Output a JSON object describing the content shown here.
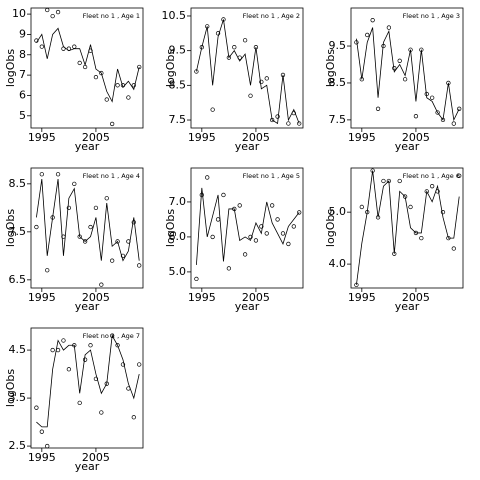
{
  "chart_data": [
    {
      "type": "line",
      "title": "Fleet no 1 , Age 1",
      "xlabel": "year",
      "ylabel": "logObs",
      "x": [
        1994,
        1995,
        1996,
        1997,
        1998,
        1999,
        2000,
        2001,
        2002,
        2003,
        2004,
        2005,
        2006,
        2007,
        2008,
        2009,
        2010,
        2011,
        2012,
        2013
      ],
      "xlim": [
        1993,
        2013.7
      ],
      "xticks": [
        1995,
        2005
      ],
      "ylim": [
        4.4,
        10.3
      ],
      "yticks": [
        5,
        6,
        7,
        8,
        9,
        10
      ],
      "series": [
        {
          "color": "#000000",
          "marker": "circle",
          "values": [
            8.7,
            8.4,
            10.2,
            9.9,
            10.1,
            8.3,
            8.3,
            8.4,
            7.6,
            7.4,
            8.2,
            6.9,
            7.1,
            5.8,
            4.6,
            6.5,
            6.5,
            5.9,
            6.5,
            7.4
          ]
        },
        {
          "color": "#000000",
          "marker": "none",
          "values": [
            8.6,
            9.0,
            7.8,
            9.0,
            9.3,
            8.4,
            8.2,
            8.3,
            8.3,
            7.5,
            8.5,
            7.3,
            7.1,
            6.2,
            5.7,
            7.3,
            6.4,
            6.7,
            6.3,
            7.4
          ]
        }
      ]
    },
    {
      "type": "line",
      "title": "Fleet no 1 , Age 2",
      "xlabel": "year",
      "ylabel": "logObs",
      "x": [
        1994,
        1995,
        1996,
        1997,
        1998,
        1999,
        2000,
        2001,
        2002,
        2003,
        2004,
        2005,
        2006,
        2007,
        2008,
        2009,
        2010,
        2011,
        2012,
        2013
      ],
      "xlim": [
        1993,
        2013.7
      ],
      "xticks": [
        1995,
        2005
      ],
      "ylim": [
        7.27,
        10.73
      ],
      "yticks": [
        7.5,
        8.5,
        9.5,
        10.5
      ],
      "series": [
        {
          "color": "#000000",
          "marker": "circle",
          "values": [
            8.9,
            9.6,
            10.2,
            7.8,
            10.0,
            10.4,
            9.3,
            9.6,
            9.3,
            9.8,
            8.2,
            9.6,
            8.6,
            8.7,
            7.5,
            7.6,
            8.8,
            7.4,
            7.7,
            7.4
          ]
        },
        {
          "color": "#000000",
          "marker": "none",
          "values": [
            8.9,
            9.6,
            10.2,
            8.5,
            9.9,
            10.4,
            9.3,
            9.5,
            9.2,
            9.4,
            8.5,
            9.6,
            8.4,
            8.5,
            7.5,
            7.4,
            8.8,
            7.5,
            7.8,
            7.4
          ]
        }
      ]
    },
    {
      "type": "line",
      "title": "Fleet no 1 , Age 3",
      "xlabel": "year",
      "ylabel": "logObs",
      "x": [
        1994,
        1995,
        1996,
        1997,
        1998,
        1999,
        2000,
        2001,
        2002,
        2003,
        2004,
        2005,
        2006,
        2007,
        2008,
        2009,
        2010,
        2011,
        2012,
        2013
      ],
      "xlim": [
        1993,
        2013.7
      ],
      "xticks": [
        1995,
        2005
      ],
      "ylim": [
        7.28,
        10.53
      ],
      "yticks": [
        7.5,
        8.5,
        9.5
      ],
      "series": [
        {
          "color": "#000000",
          "marker": "circle",
          "values": [
            9.6,
            8.6,
            9.8,
            10.2,
            7.8,
            9.5,
            10.0,
            8.9,
            9.1,
            8.6,
            9.4,
            7.6,
            9.4,
            8.2,
            8.1,
            7.7,
            7.5,
            8.5,
            7.4,
            7.8
          ]
        },
        {
          "color": "#000000",
          "marker": "none",
          "values": [
            9.7,
            8.6,
            9.6,
            10.0,
            8.1,
            9.6,
            9.9,
            8.8,
            9.0,
            8.7,
            9.4,
            8.0,
            9.4,
            8.1,
            8.0,
            7.7,
            7.5,
            8.5,
            7.5,
            7.8
          ]
        }
      ]
    },
    {
      "type": "line",
      "title": "Fleet no 1 , Age 4",
      "xlabel": "year",
      "ylabel": "logObs",
      "x": [
        1994,
        1995,
        1996,
        1997,
        1998,
        1999,
        2000,
        2001,
        2002,
        2003,
        2004,
        2005,
        2006,
        2007,
        2008,
        2009,
        2010,
        2011,
        2012,
        2013
      ],
      "xlim": [
        1993,
        2013.7
      ],
      "xticks": [
        1995,
        2005
      ],
      "ylim": [
        6.33,
        8.83
      ],
      "yticks": [
        6.5,
        7.5,
        8.5
      ],
      "series": [
        {
          "color": "#000000",
          "marker": "circle",
          "values": [
            7.6,
            8.7,
            6.7,
            7.8,
            8.7,
            7.4,
            8.0,
            8.5,
            7.4,
            7.3,
            7.6,
            8.0,
            6.4,
            8.2,
            6.9,
            7.3,
            7.0,
            7.3,
            7.7,
            6.8
          ]
        },
        {
          "color": "#000000",
          "marker": "none",
          "values": [
            7.8,
            8.6,
            7.0,
            7.8,
            8.6,
            7.0,
            8.2,
            8.4,
            7.4,
            7.3,
            7.4,
            7.8,
            6.9,
            8.1,
            7.2,
            7.3,
            6.9,
            7.1,
            7.8,
            6.9
          ]
        }
      ]
    },
    {
      "type": "line",
      "title": "Fleet no 1 , Age 5",
      "xlabel": "year",
      "ylabel": "logObs",
      "x": [
        1994,
        1995,
        1996,
        1997,
        1998,
        1999,
        2000,
        2001,
        2002,
        2003,
        2004,
        2005,
        2006,
        2007,
        2008,
        2009,
        2010,
        2011,
        2012,
        2013
      ],
      "xlim": [
        1993,
        2013.7
      ],
      "xticks": [
        1995,
        2005
      ],
      "ylim": [
        4.54,
        7.97
      ],
      "yticks": [
        {
          "value": 5,
          "label": "5.0"
        },
        {
          "value": 6,
          "label": "6.0"
        },
        {
          "value": 7,
          "label": "7.0"
        }
      ],
      "series": [
        {
          "color": "#000000",
          "marker": "circle",
          "values": [
            4.8,
            7.2,
            7.7,
            6.0,
            6.5,
            7.2,
            5.1,
            6.8,
            6.9,
            5.5,
            6.0,
            5.9,
            6.3,
            6.1,
            6.9,
            6.5,
            6.1,
            5.8,
            6.3,
            6.7
          ]
        },
        {
          "color": "#000000",
          "marker": "none",
          "values": [
            5.2,
            7.4,
            6.0,
            6.6,
            7.2,
            5.3,
            6.8,
            6.8,
            5.9,
            6.0,
            5.9,
            6.4,
            6.1,
            7.0,
            6.4,
            6.1,
            5.8,
            6.3,
            6.5,
            6.7
          ]
        }
      ]
    },
    {
      "type": "line",
      "title": "Fleet no 1 , Age 6",
      "xlabel": "year",
      "ylabel": "logObs",
      "x": [
        1994,
        1995,
        1996,
        1997,
        1998,
        1999,
        2000,
        2001,
        2002,
        2003,
        2004,
        2005,
        2006,
        2007,
        2008,
        2009,
        2010,
        2011,
        2012,
        2013
      ],
      "xlim": [
        1993,
        2013.7
      ],
      "xticks": [
        1995,
        2005
      ],
      "ylim": [
        3.54,
        5.85
      ],
      "yticks": [
        {
          "value": 4,
          "label": "4.0"
        },
        {
          "value": 5,
          "label": "5.0"
        }
      ],
      "series": [
        {
          "color": "#000000",
          "marker": "circle",
          "values": [
            3.6,
            5.1,
            5.0,
            5.8,
            4.9,
            5.6,
            5.6,
            4.2,
            5.6,
            5.3,
            5.1,
            4.6,
            4.5,
            5.4,
            5.5,
            5.4,
            5.0,
            4.5,
            4.3,
            5.7
          ]
        },
        {
          "color": "#000000",
          "marker": "none",
          "values": [
            3.6,
            4.4,
            5.0,
            5.8,
            4.9,
            5.5,
            5.6,
            4.2,
            5.4,
            5.3,
            4.7,
            4.6,
            4.6,
            5.4,
            5.2,
            5.5,
            4.9,
            4.5,
            4.5,
            5.3
          ]
        }
      ]
    },
    {
      "type": "line",
      "title": "Fleet no 1 , Age 7",
      "xlabel": "year",
      "ylabel": "logObs",
      "x": [
        1994,
        1995,
        1996,
        1997,
        1998,
        1999,
        2000,
        2001,
        2002,
        2003,
        2004,
        2005,
        2006,
        2007,
        2008,
        2009,
        2010,
        2011,
        2012,
        2013
      ],
      "xlim": [
        1993,
        2013.7
      ],
      "xticks": [
        1995,
        2005
      ],
      "ylim": [
        2.46,
        4.96
      ],
      "yticks": [
        2.5,
        3.5,
        4.5
      ],
      "series": [
        {
          "color": "#000000",
          "marker": "circle",
          "values": [
            3.3,
            2.8,
            2.5,
            4.5,
            4.5,
            4.7,
            4.1,
            4.6,
            3.4,
            4.3,
            4.6,
            3.9,
            3.2,
            3.8,
            4.8,
            4.6,
            4.2,
            3.7,
            3.1,
            4.2
          ]
        },
        {
          "color": "#000000",
          "marker": "none",
          "values": [
            3.0,
            2.9,
            2.9,
            4.1,
            4.7,
            4.5,
            4.6,
            4.6,
            3.6,
            4.4,
            4.5,
            4.0,
            3.6,
            3.8,
            4.8,
            4.6,
            4.3,
            3.8,
            3.5,
            4.0
          ]
        }
      ]
    }
  ]
}
